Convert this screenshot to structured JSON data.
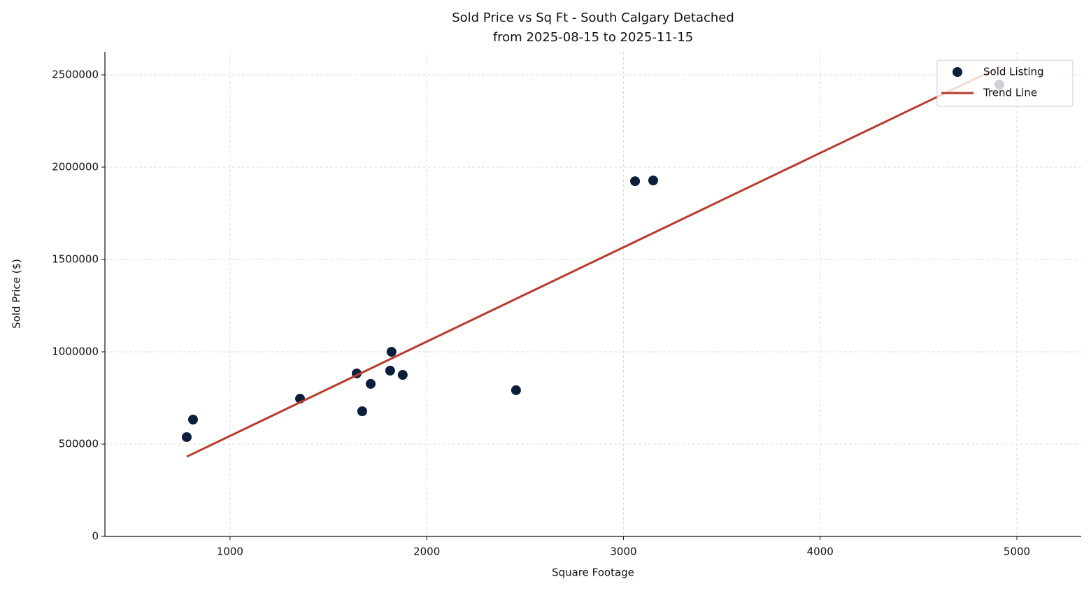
{
  "chart_data": {
    "type": "scatter",
    "title": "Sold Price vs Sq Ft - South Calgary Detached",
    "subtitle": "from 2025-08-15 to 2025-11-15",
    "x_label": "Square Footage",
    "y_label": "Sold Price ($)",
    "xlim": [
      364,
      5327
    ],
    "ylim": [
      0,
      2625000
    ],
    "xticks": [
      1000,
      2000,
      3000,
      4000,
      5000
    ],
    "yticks": [
      0,
      500000,
      1000000,
      1500000,
      2000000,
      2500000
    ],
    "grid": true,
    "legend": "upper right",
    "series": [
      {
        "name": "Sold Listing",
        "type": "scatter",
        "color": "#0b1e3a",
        "x": [
          780,
          812,
          1356,
          1644,
          1672,
          1715,
          1814,
          1821,
          1878,
          2454,
          3059,
          3151,
          4911
        ],
        "values": [
          538000,
          633000,
          746000,
          883000,
          678000,
          826000,
          898000,
          1000000,
          875000,
          792000,
          1924000,
          1928000,
          2447000
        ]
      },
      {
        "name": "Trend Line",
        "type": "line",
        "color": "#b83c2e",
        "x": [
          780,
          4911
        ],
        "values": [
          432000,
          2542000
        ]
      }
    ]
  }
}
